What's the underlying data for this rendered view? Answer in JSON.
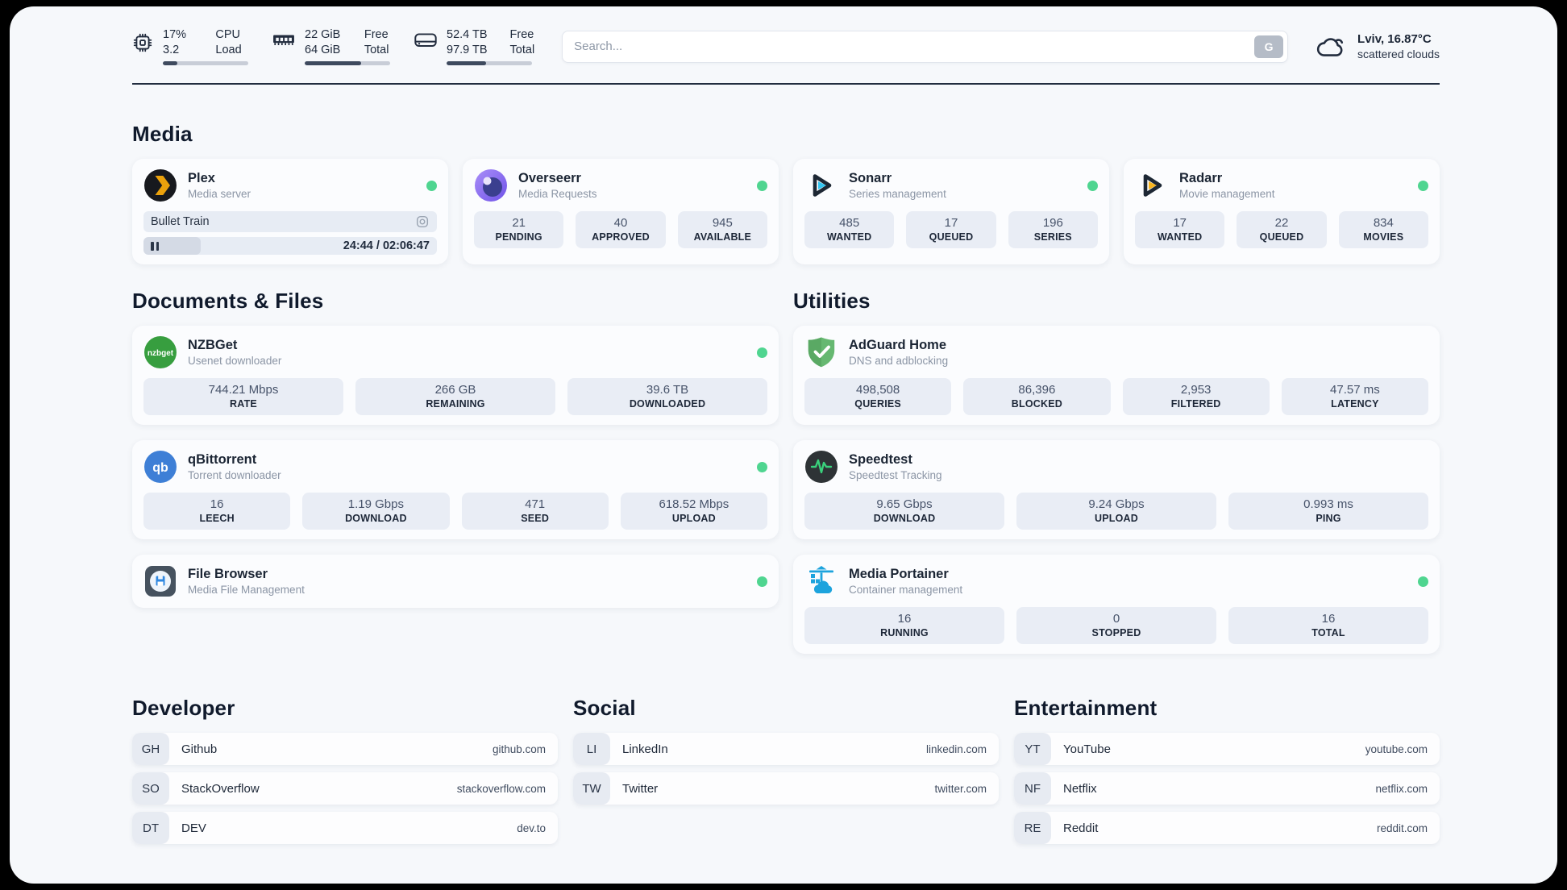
{
  "system": {
    "cpu": {
      "values": [
        "17%",
        "3.2"
      ],
      "labels": [
        "CPU",
        "Load"
      ],
      "progress": 17
    },
    "memory": {
      "values": [
        "22 GiB",
        "64 GiB"
      ],
      "labels": [
        "Free",
        "Total"
      ],
      "progress": 66
    },
    "disk": {
      "values": [
        "52.4 TB",
        "97.9 TB"
      ],
      "labels": [
        "Free",
        "Total"
      ],
      "progress": 46
    }
  },
  "search": {
    "placeholder": "Search...",
    "button": "G"
  },
  "weather": {
    "location_temp": "Lviv, 16.87°C",
    "condition": "scattered clouds"
  },
  "sections": {
    "media": "Media",
    "documents": "Documents & Files",
    "utilities": "Utilities",
    "developer": "Developer",
    "social": "Social",
    "entertainment": "Entertainment"
  },
  "apps": {
    "plex": {
      "name": "Plex",
      "desc": "Media server",
      "online": true,
      "now_playing": "Bullet Train",
      "time": "24:44 / 02:06:47",
      "progress": 19.5
    },
    "overseerr": {
      "name": "Overseerr",
      "desc": "Media Requests",
      "online": true,
      "stats": [
        {
          "value": "21",
          "label": "PENDING"
        },
        {
          "value": "40",
          "label": "APPROVED"
        },
        {
          "value": "945",
          "label": "AVAILABLE"
        }
      ]
    },
    "sonarr": {
      "name": "Sonarr",
      "desc": "Series management",
      "online": true,
      "stats": [
        {
          "value": "485",
          "label": "WANTED"
        },
        {
          "value": "17",
          "label": "QUEUED"
        },
        {
          "value": "196",
          "label": "SERIES"
        }
      ]
    },
    "radarr": {
      "name": "Radarr",
      "desc": "Movie management",
      "online": true,
      "stats": [
        {
          "value": "17",
          "label": "WANTED"
        },
        {
          "value": "22",
          "label": "QUEUED"
        },
        {
          "value": "834",
          "label": "MOVIES"
        }
      ]
    },
    "nzbget": {
      "name": "NZBGet",
      "desc": "Usenet downloader",
      "online": true,
      "icon_text": "nzbget",
      "stats": [
        {
          "value": "744.21 Mbps",
          "label": "RATE"
        },
        {
          "value": "266 GB",
          "label": "REMAINING"
        },
        {
          "value": "39.6 TB",
          "label": "DOWNLOADED"
        }
      ]
    },
    "qbittorrent": {
      "name": "qBittorrent",
      "desc": "Torrent downloader",
      "online": true,
      "icon_text": "qb",
      "stats": [
        {
          "value": "16",
          "label": "LEECH"
        },
        {
          "value": "1.19 Gbps",
          "label": "DOWNLOAD"
        },
        {
          "value": "471",
          "label": "SEED"
        },
        {
          "value": "618.52 Mbps",
          "label": "UPLOAD"
        }
      ]
    },
    "filebrowser": {
      "name": "File Browser",
      "desc": "Media File Management",
      "online": true
    },
    "adguard": {
      "name": "AdGuard Home",
      "desc": "DNS and adblocking",
      "online": false,
      "stats": [
        {
          "value": "498,508",
          "label": "QUERIES"
        },
        {
          "value": "86,396",
          "label": "BLOCKED"
        },
        {
          "value": "2,953",
          "label": "FILTERED"
        },
        {
          "value": "47.57 ms",
          "label": "LATENCY"
        }
      ]
    },
    "speedtest": {
      "name": "Speedtest",
      "desc": "Speedtest Tracking",
      "online": false,
      "stats": [
        {
          "value": "9.65 Gbps",
          "label": "DOWNLOAD"
        },
        {
          "value": "9.24 Gbps",
          "label": "UPLOAD"
        },
        {
          "value": "0.993 ms",
          "label": "PING"
        }
      ]
    },
    "portainer": {
      "name": "Media Portainer",
      "desc": "Container management",
      "online": true,
      "stats": [
        {
          "value": "16",
          "label": "RUNNING"
        },
        {
          "value": "0",
          "label": "STOPPED"
        },
        {
          "value": "16",
          "label": "TOTAL"
        }
      ]
    }
  },
  "links": {
    "developer": [
      {
        "abbr": "GH",
        "name": "Github",
        "url": "github.com"
      },
      {
        "abbr": "SO",
        "name": "StackOverflow",
        "url": "stackoverflow.com"
      },
      {
        "abbr": "DT",
        "name": "DEV",
        "url": "dev.to"
      }
    ],
    "social": [
      {
        "abbr": "LI",
        "name": "LinkedIn",
        "url": "linkedin.com"
      },
      {
        "abbr": "TW",
        "name": "Twitter",
        "url": "twitter.com"
      }
    ],
    "entertainment": [
      {
        "abbr": "YT",
        "name": "YouTube",
        "url": "youtube.com"
      },
      {
        "abbr": "NF",
        "name": "Netflix",
        "url": "netflix.com"
      },
      {
        "abbr": "RE",
        "name": "Reddit",
        "url": "reddit.com"
      }
    ]
  },
  "colors": {
    "status_online": "#4fd590",
    "accent_dark": "#222d40",
    "page_bg": "#f6f8fb"
  }
}
